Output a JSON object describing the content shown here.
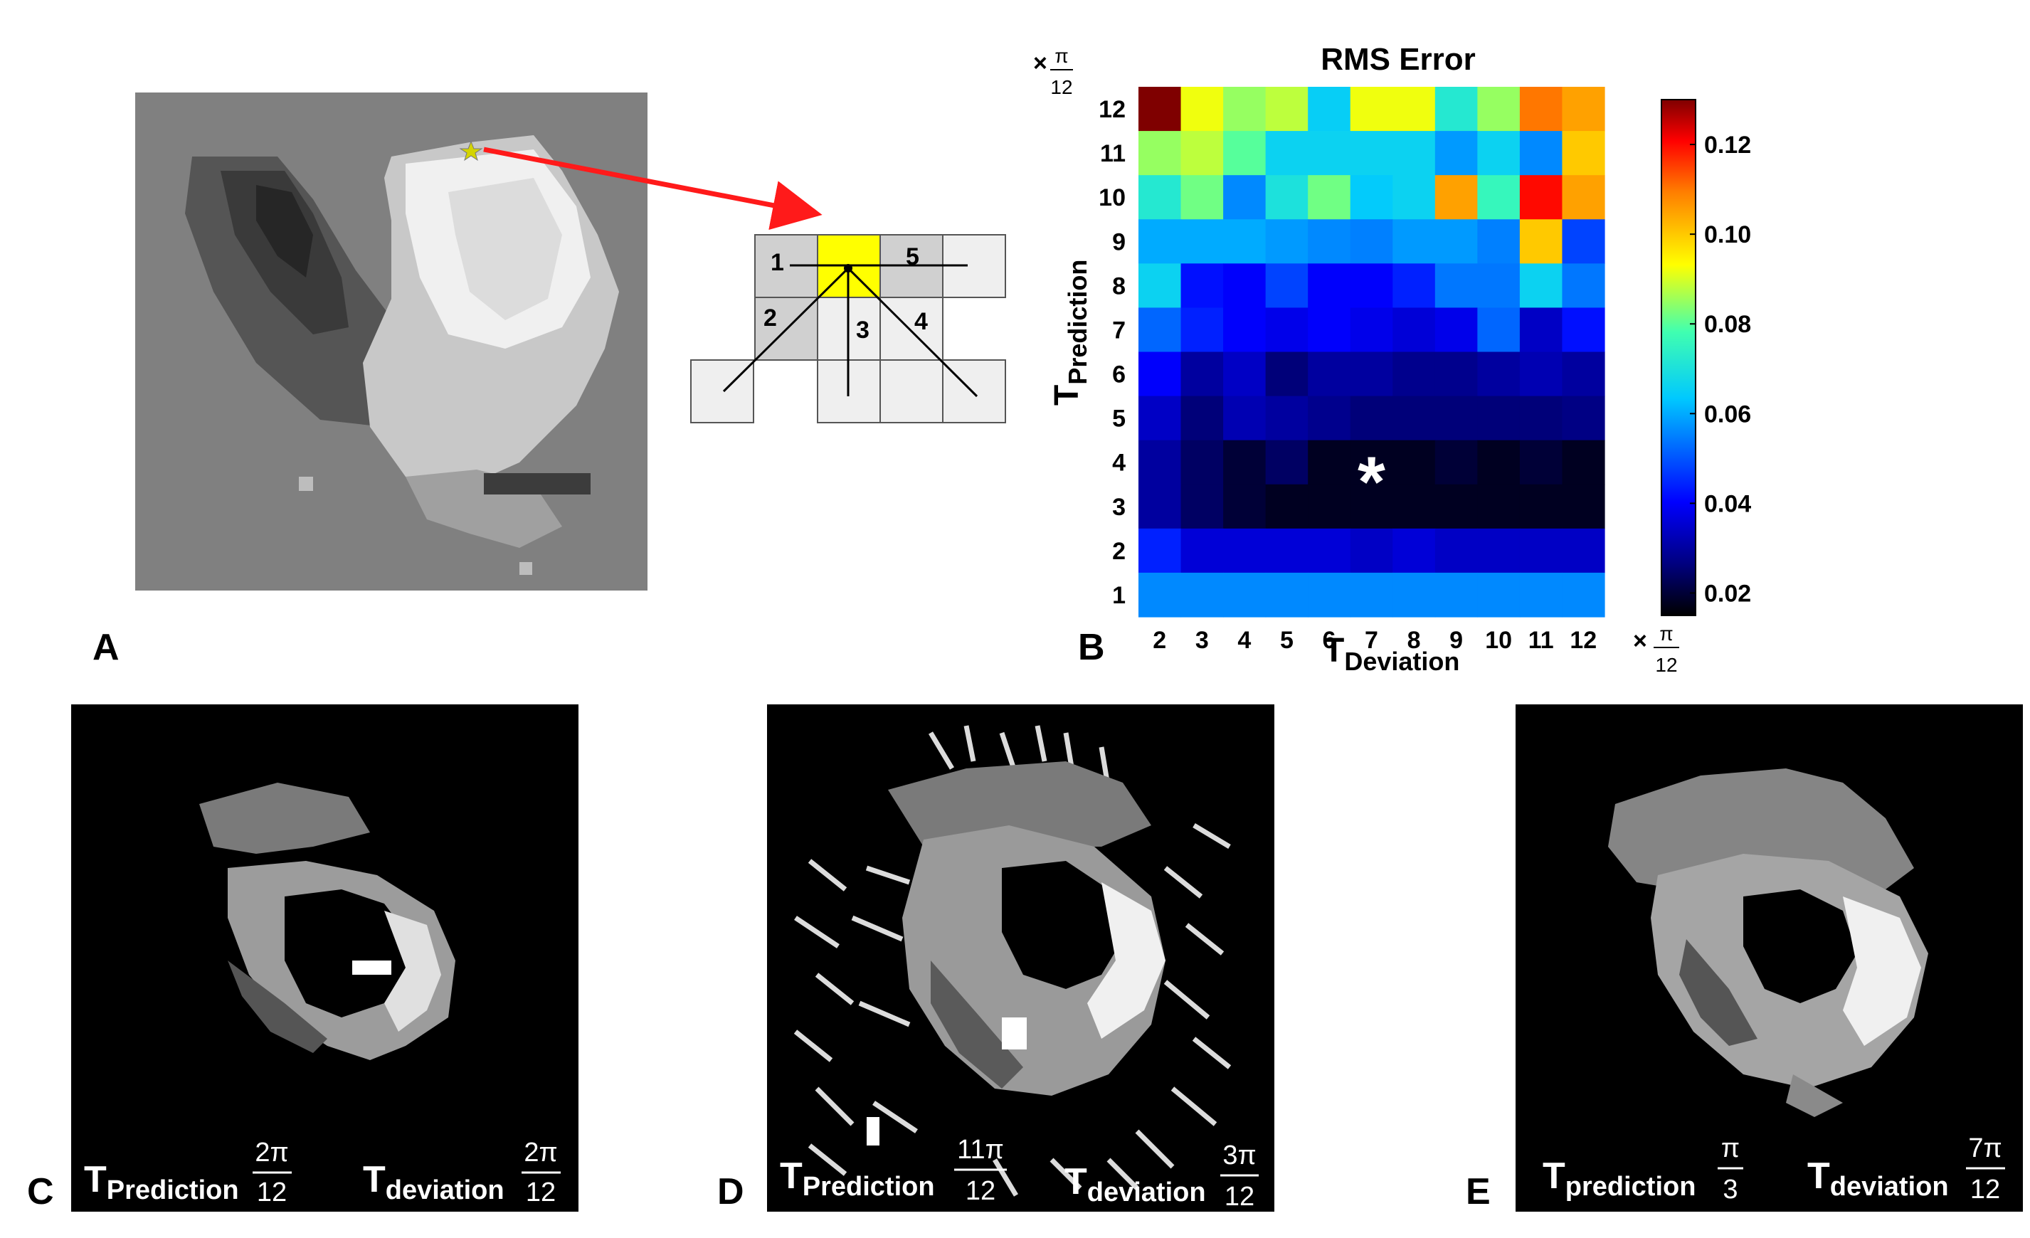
{
  "panels": {
    "a": "A",
    "b": "B",
    "c": "C",
    "d": "D",
    "e": "E"
  },
  "colors": {
    "arrow": "#ff1a1a",
    "highlight": "#ffff00",
    "star": "#d4d400"
  },
  "diagram": {
    "cell_numbers": [
      "1",
      "2",
      "3",
      "4",
      "5"
    ]
  },
  "chart_data": {
    "type": "heatmap",
    "title": "RMS Error",
    "xlabel_main": "T",
    "xlabel_sub": "Deviation",
    "ylabel_main": "T",
    "ylabel_sub": "Prediction",
    "x_unit": {
      "prefix": "×",
      "num": "π",
      "den": "12"
    },
    "y_unit": {
      "prefix": "×",
      "num": "π",
      "den": "12"
    },
    "x": [
      2,
      3,
      4,
      5,
      6,
      7,
      8,
      9,
      10,
      11,
      12
    ],
    "y": [
      12,
      11,
      10,
      9,
      8,
      7,
      6,
      5,
      4,
      3,
      2,
      1
    ],
    "z": [
      [
        0.13,
        0.092,
        0.085,
        0.088,
        0.065,
        0.092,
        0.092,
        0.072,
        0.085,
        0.11,
        0.105
      ],
      [
        0.085,
        0.088,
        0.08,
        0.066,
        0.066,
        0.066,
        0.066,
        0.058,
        0.066,
        0.056,
        0.1
      ],
      [
        0.072,
        0.082,
        0.056,
        0.07,
        0.082,
        0.064,
        0.066,
        0.105,
        0.076,
        0.12,
        0.105
      ],
      [
        0.06,
        0.06,
        0.06,
        0.058,
        0.056,
        0.055,
        0.058,
        0.058,
        0.055,
        0.1,
        0.048
      ],
      [
        0.066,
        0.042,
        0.04,
        0.048,
        0.04,
        0.04,
        0.044,
        0.054,
        0.054,
        0.066,
        0.054
      ],
      [
        0.052,
        0.044,
        0.04,
        0.038,
        0.04,
        0.038,
        0.036,
        0.038,
        0.052,
        0.034,
        0.042
      ],
      [
        0.04,
        0.03,
        0.034,
        0.026,
        0.03,
        0.03,
        0.028,
        0.028,
        0.03,
        0.032,
        0.03
      ],
      [
        0.034,
        0.026,
        0.032,
        0.03,
        0.028,
        0.026,
        0.026,
        0.026,
        0.026,
        0.026,
        0.027
      ],
      [
        0.03,
        0.024,
        0.02,
        0.024,
        0.018,
        0.018,
        0.018,
        0.02,
        0.018,
        0.02,
        0.018
      ],
      [
        0.03,
        0.024,
        0.02,
        0.018,
        0.018,
        0.018,
        0.018,
        0.018,
        0.018,
        0.018,
        0.018
      ],
      [
        0.044,
        0.036,
        0.036,
        0.036,
        0.036,
        0.034,
        0.036,
        0.034,
        0.034,
        0.034,
        0.034
      ],
      [
        0.056,
        0.056,
        0.056,
        0.056,
        0.056,
        0.056,
        0.056,
        0.056,
        0.056,
        0.056,
        0.056
      ]
    ],
    "zlim": [
      0.015,
      0.13
    ],
    "colormap": "jet",
    "colorbar_ticks": [
      "0.12",
      "0.10",
      "0.08",
      "0.06",
      "0.04",
      "0.02"
    ],
    "colorbar_tick_values": [
      0.12,
      0.1,
      0.08,
      0.06,
      0.04,
      0.02
    ],
    "annotation": {
      "text": "*",
      "x": 7,
      "y": 4
    }
  },
  "captions": {
    "c": {
      "pred_main": "T",
      "pred_sub": "Prediction",
      "pred_num": "2π",
      "pred_den": "12",
      "dev_main": "T",
      "dev_sub": "deviation",
      "dev_num": "2π",
      "dev_den": "12"
    },
    "d": {
      "pred_main": "T",
      "pred_sub": "Prediction",
      "pred_num": "11π",
      "pred_den": "12",
      "dev_main": "T",
      "dev_sub": "deviation",
      "dev_num": "3π",
      "dev_den": "12"
    },
    "e": {
      "pred_main": "T",
      "pred_sub": "prediction",
      "pred_num": "π",
      "pred_den": "3",
      "dev_main": "T",
      "dev_sub": "deviation",
      "dev_num": "7π",
      "dev_den": "12"
    }
  }
}
